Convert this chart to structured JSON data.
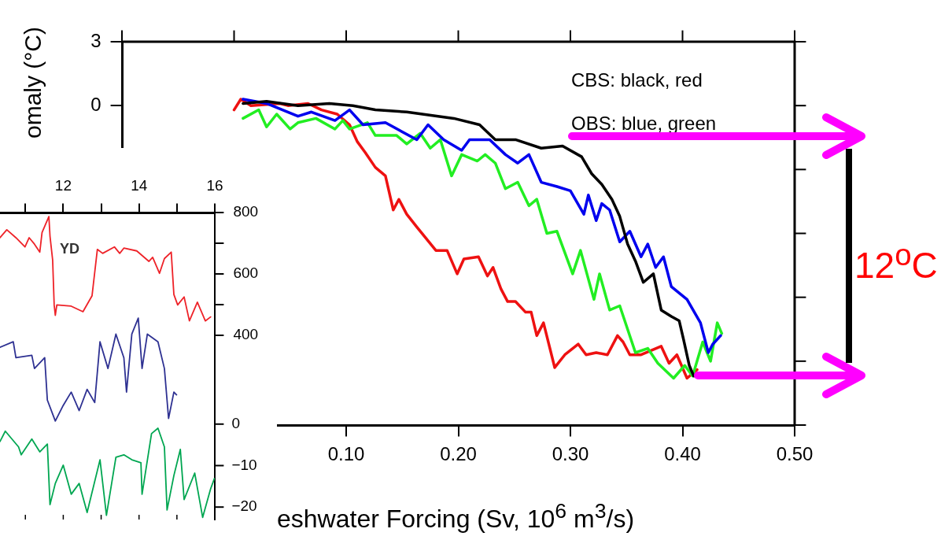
{
  "chart_data": [
    {
      "type": "line",
      "xlabel": "eshwater Forcing (Sv, 10$^{6}$ m$^{3}$/s)",
      "ylabel": "omaly (°C)",
      "xlim": [
        -0.1,
        0.5
      ],
      "xticks": [
        {
          "value": -0.1,
          "label": null
        },
        {
          "value": 0,
          "label": null
        },
        {
          "value": 0.1,
          "label": "0.10"
        },
        {
          "value": 0.2,
          "label": "0.20"
        },
        {
          "value": 0.3,
          "label": "0.30"
        },
        {
          "value": 0.4,
          "label": "0.40"
        },
        {
          "value": 0.5,
          "label": "0.50"
        }
      ],
      "ylim": [
        -15,
        3
      ],
      "yticks": [
        {
          "value": -15,
          "label": null
        },
        {
          "value": -12,
          "label": null
        },
        {
          "value": -9,
          "label": null
        },
        {
          "value": -6,
          "label": null
        },
        {
          "value": -3,
          "label": null
        },
        0,
        3
      ],
      "grid": false,
      "legend": false,
      "marker": "none",
      "line_style": "solid",
      "annotations": [
        "CBS: black, red",
        "OBS: blue, green",
        "12$^{o}$C"
      ],
      "series": [
        {
          "color": "#000000",
          "x": [
            0.008,
            0.029,
            0.057,
            0.085,
            0.106,
            0.126,
            0.154,
            0.182,
            0.196,
            0.219,
            0.233,
            0.251,
            0.274,
            0.293,
            0.31,
            0.319,
            0.328,
            0.337,
            0.344,
            0.351,
            0.358,
            0.365,
            0.374,
            0.381,
            0.39,
            0.397,
            0.401,
            0.406,
            0.41
          ],
          "values": [
            0.1,
            0.2,
            0.0,
            0.1,
            0.0,
            -0.2,
            -0.3,
            -0.5,
            -0.6,
            -0.9,
            -1.6,
            -1.6,
            -2.0,
            -1.9,
            -2.4,
            -3.2,
            -3.7,
            -4.4,
            -5.2,
            -6.5,
            -7.3,
            -8.3,
            -7.9,
            -9.6,
            -9.9,
            -10.1,
            -11.0,
            -12.2,
            -12.7
          ]
        },
        {
          "color": "#0000ee",
          "x": [
            0.008,
            0.029,
            0.057,
            0.069,
            0.09,
            0.103,
            0.115,
            0.135,
            0.163,
            0.173,
            0.187,
            0.203,
            0.21,
            0.228,
            0.242,
            0.253,
            0.263,
            0.274,
            0.288,
            0.3,
            0.312,
            0.316,
            0.323,
            0.328,
            0.335,
            0.344,
            0.353,
            0.363,
            0.369,
            0.376,
            0.383,
            0.39,
            0.404,
            0.416,
            0.423,
            0.427,
            0.434
          ],
          "values": [
            0.3,
            0.1,
            -0.5,
            -0.3,
            -0.7,
            -0.2,
            -0.9,
            -0.8,
            -1.6,
            -0.9,
            -1.6,
            -2.1,
            -1.6,
            -1.6,
            -2.3,
            -2.7,
            -2.3,
            -3.6,
            -3.8,
            -4.0,
            -5.1,
            -4.2,
            -5.4,
            -4.6,
            -4.9,
            -6.4,
            -5.9,
            -7.1,
            -6.5,
            -7.6,
            -7.1,
            -8.5,
            -9.1,
            -10.2,
            -11.6,
            -11.2,
            -10.8
          ]
        },
        {
          "color": "#22ee22",
          "x": [
            0.008,
            0.022,
            0.029,
            0.038,
            0.05,
            0.057,
            0.073,
            0.09,
            0.097,
            0.103,
            0.119,
            0.126,
            0.145,
            0.154,
            0.166,
            0.175,
            0.184,
            0.194,
            0.203,
            0.217,
            0.224,
            0.233,
            0.242,
            0.253,
            0.263,
            0.27,
            0.279,
            0.288,
            0.302,
            0.309,
            0.321,
            0.326,
            0.335,
            0.344,
            0.358,
            0.369,
            0.378,
            0.392,
            0.402,
            0.409,
            0.418,
            0.425,
            0.431,
            0.435
          ],
          "values": [
            -0.6,
            -0.2,
            -1.0,
            -0.4,
            -1.1,
            -0.8,
            -0.6,
            -1.1,
            -0.7,
            -1.1,
            -0.8,
            -1.4,
            -1.4,
            -1.8,
            -1.3,
            -2.0,
            -1.6,
            -3.3,
            -2.3,
            -2.6,
            -2.3,
            -2.7,
            -3.9,
            -3.6,
            -4.7,
            -4.4,
            -6.0,
            -5.9,
            -7.9,
            -6.8,
            -9.1,
            -7.9,
            -9.6,
            -9.4,
            -11.6,
            -11.4,
            -12.1,
            -12.8,
            -12.2,
            -12.7,
            -11.1,
            -12.0,
            -10.2,
            -10.7
          ]
        },
        {
          "color": "#ee1111",
          "x": [
            0.0,
            0.006,
            0.015,
            0.041,
            0.048,
            0.066,
            0.078,
            0.092,
            0.103,
            0.11,
            0.117,
            0.126,
            0.135,
            0.142,
            0.147,
            0.154,
            0.163,
            0.18,
            0.19,
            0.199,
            0.205,
            0.218,
            0.226,
            0.231,
            0.238,
            0.244,
            0.251,
            0.26,
            0.265,
            0.27,
            0.276,
            0.286,
            0.295,
            0.307,
            0.314,
            0.323,
            0.333,
            0.342,
            0.347,
            0.353,
            0.363,
            0.381,
            0.388,
            0.395,
            0.404,
            0.413
          ],
          "values": [
            -0.2,
            0.3,
            0.0,
            0.1,
            0.0,
            0.1,
            -0.2,
            -0.4,
            -0.9,
            -1.7,
            -2.2,
            -2.9,
            -3.3,
            -4.9,
            -4.4,
            -5.1,
            -5.7,
            -6.8,
            -6.8,
            -7.9,
            -7.2,
            -7.1,
            -8.0,
            -7.6,
            -8.6,
            -9.2,
            -9.2,
            -9.7,
            -9.7,
            -10.8,
            -10.2,
            -12.3,
            -11.7,
            -11.2,
            -11.7,
            -11.6,
            -11.7,
            -10.8,
            -11.1,
            -11.7,
            -11.7,
            -11.3,
            -12.1,
            -11.7,
            -12.8,
            -12.4
          ]
        }
      ]
    },
    {
      "type": "line",
      "xlim": [
        10.33,
        16
      ],
      "xticks": [
        {
          "value": 11,
          "label": null
        },
        12,
        {
          "value": 13,
          "label": null
        },
        14,
        {
          "value": 15,
          "label": null
        },
        16
      ],
      "ylim": [
        -200,
        800
      ],
      "yticks": [
        400,
        {
          "value": 500,
          "label": null
        },
        600,
        {
          "value": 700,
          "label": null
        },
        800
      ],
      "y2lim": [
        -23,
        51
      ],
      "y2ticks": [
        0,
        -10,
        -20
      ],
      "grid": false,
      "legend": false,
      "marker": "none",
      "line_style": "solid",
      "annotations": [
        "YD"
      ],
      "series": [
        {
          "color": "#ee2228",
          "x": [
            10.33,
            10.51,
            10.75,
            10.99,
            11.1,
            11.24,
            11.38,
            11.44,
            11.62,
            11.65,
            11.72,
            11.76,
            11.79,
            11.83,
            12.21,
            12.52,
            12.76,
            12.9,
            13.04,
            13.35,
            13.49,
            13.6,
            13.94,
            14.26,
            14.36,
            14.54,
            14.67,
            14.85,
            14.92,
            15.02,
            15.19,
            15.33,
            15.54,
            15.75,
            15.89
          ],
          "values": [
            718,
            744,
            718,
            688,
            718,
            697,
            671,
            735,
            787,
            723,
            645,
            499,
            465,
            499,
            495,
            477,
            529,
            680,
            667,
            688,
            667,
            684,
            675,
            641,
            654,
            602,
            650,
            671,
            533,
            499,
            525,
            447,
            508,
            447,
            460
          ]
        },
        {
          "color": "#2e3192",
          "x": [
            10.33,
            10.68,
            10.75,
            11.17,
            11.24,
            11.51,
            11.58,
            11.79,
            12.0,
            12.21,
            12.42,
            12.63,
            12.83,
            12.97,
            13.18,
            13.39,
            13.6,
            13.67,
            13.81,
            13.98,
            14.08,
            14.22,
            14.5,
            14.67,
            14.78,
            14.92,
            14.99
          ],
          "values": [
            361,
            379,
            327,
            335,
            292,
            327,
            189,
            121,
            172,
            215,
            155,
            224,
            181,
            379,
            292,
            404,
            327,
            215,
            404,
            456,
            292,
            404,
            379,
            292,
            129,
            215,
            206
          ]
        },
        {
          "color": "#00a651",
          "axis": "y2",
          "x": [
            10.33,
            10.47,
            10.82,
            10.89,
            11.17,
            11.38,
            11.58,
            11.65,
            11.79,
            12.0,
            12.21,
            12.42,
            12.63,
            12.97,
            13.14,
            13.39,
            13.6,
            13.81,
            14.05,
            14.08,
            14.33,
            14.5,
            14.67,
            14.74,
            14.92,
            15.09,
            15.19,
            15.47,
            15.68,
            15.89,
            15.99
          ],
          "values": [
            -4.2,
            -1.7,
            -5.5,
            -7.4,
            -3.6,
            -6.7,
            -4.8,
            -19.4,
            -14.3,
            -9.9,
            -16.9,
            -14.3,
            -21.3,
            -8.6,
            -22.0,
            -8.0,
            -7.4,
            -8.6,
            -9.3,
            -16.9,
            -2.3,
            -1.0,
            -5.5,
            -20.7,
            -12.4,
            -6.1,
            -18.2,
            -11.8,
            -22.5,
            -15.6,
            -13.1
          ]
        }
      ]
    }
  ]
}
